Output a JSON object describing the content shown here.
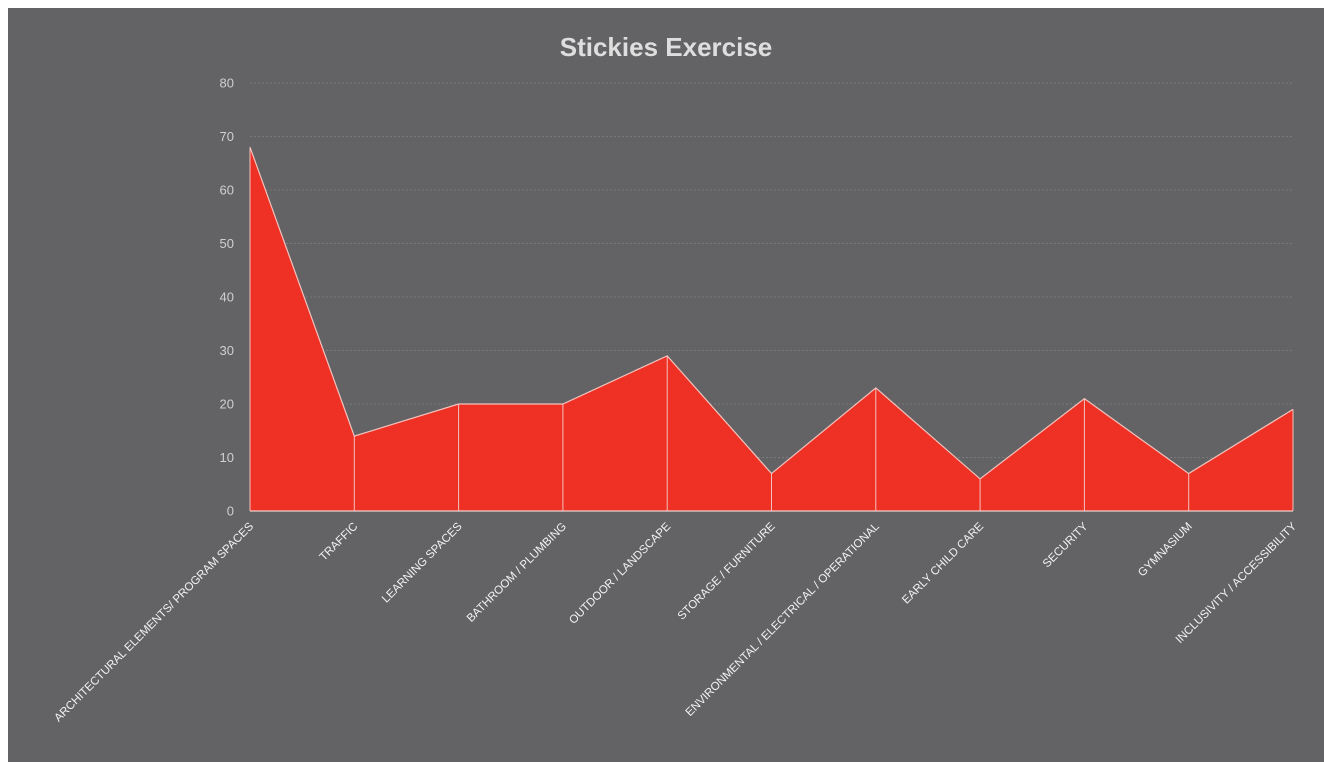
{
  "chart_data": {
    "type": "area",
    "title": "Stickies Exercise",
    "xlabel": "",
    "ylabel": "",
    "ylim": [
      0,
      80
    ],
    "yticks": [
      0,
      10,
      20,
      30,
      40,
      50,
      60,
      70,
      80
    ],
    "grid": "horizontal",
    "categories": [
      "ARCHITECTURAL ELEMENTS/ PROGRAM SPACES",
      "TRAFFIC",
      "LEARNING SPACES",
      "BATHROOM / PLUMBING",
      "OUTDOOR / LANDSCAPE",
      "STORAGE / FURNITURE",
      "ENVIRONMENTAL / ELECTRICAL / OPERATIONAL",
      "EARLY CHILD CARE",
      "SECURITY",
      "GYMNASIUM",
      "INCLUSIVITY / ACCESSIBILITY"
    ],
    "series": [
      {
        "values": [
          68,
          14,
          20,
          20,
          29,
          7,
          23,
          6,
          21,
          7,
          19
        ],
        "color": "#ee3124"
      }
    ]
  },
  "colors": {
    "background": "#636265",
    "area_fill": "#ee3124",
    "area_outline": "#f3c2bd",
    "gridline": "#7a797c",
    "title": "#dedede"
  }
}
